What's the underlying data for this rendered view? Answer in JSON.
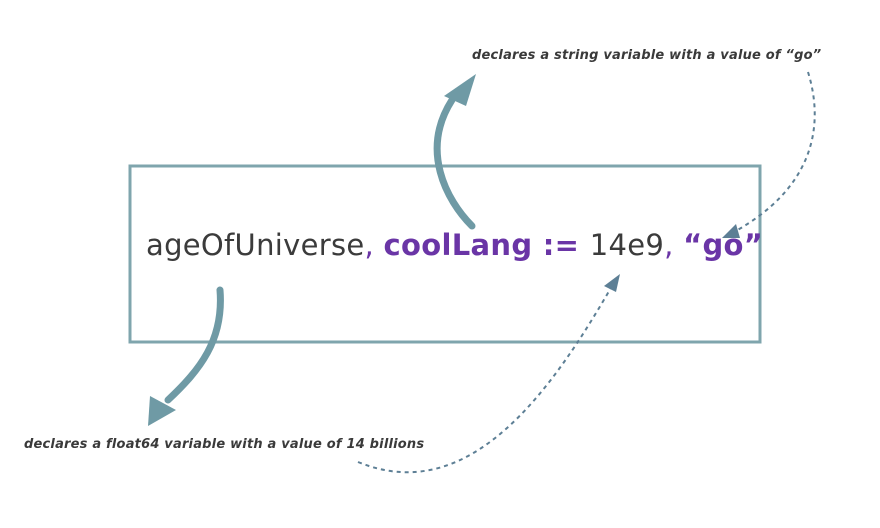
{
  "code": {
    "var1": "ageOfUniverse",
    "comma1": ", ",
    "var2": "coolLang",
    "op": " := ",
    "val1": "14e9",
    "comma2": ", ",
    "val2": "“go”"
  },
  "annotations": {
    "string_var": "declares a string variable with a value of “go”",
    "float_var": "declares a float64 variable with a value of 14 billions"
  },
  "colors": {
    "box_border": "#7fa5ad",
    "arrow": "#6f9aa5",
    "dotted_arrow": "#5d7f95",
    "keyword_purple": "#6a35a6",
    "text_dark": "#3b3b3b"
  }
}
